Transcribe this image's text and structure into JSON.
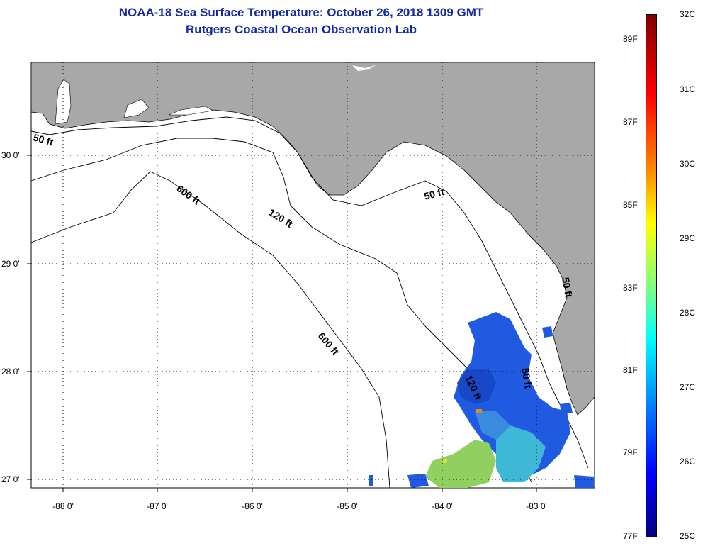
{
  "title": {
    "line1": "NOAA-18 Sea Surface Temperature:  October 26, 2018 1309 GMT",
    "line2": "Rutgers Coastal Ocean Observation Lab"
  },
  "axes": {
    "lat_labels": [
      "30 0'",
      "29 0'",
      "28 0'",
      "27 0'"
    ],
    "lon_labels": [
      "-88 0'",
      "-87 0'",
      "-86 0'",
      "-85 0'",
      "-84 0'",
      "-83 0'"
    ]
  },
  "contours": {
    "labels": [
      "50 ft",
      "600 ft",
      "120 ft",
      "50 ft",
      "600 ft",
      "120 ft",
      "50 ft",
      "50 ft"
    ]
  },
  "colorbar": {
    "celsius": [
      "32C",
      "31C",
      "30C",
      "29C",
      "28C",
      "27C",
      "26C",
      "25C"
    ],
    "fahrenheit": [
      "89F",
      "87F",
      "85F",
      "83F",
      "81F",
      "79F",
      "77F"
    ]
  },
  "colors": {
    "land": "#a8a8a8",
    "ocean": "#ffffff",
    "title": "#1428a8",
    "sst_blue": "#1f5ae0",
    "sst_cyan": "#3fb8d8",
    "sst_green": "#8fd060"
  },
  "icons": {
    "map": "sst-map"
  }
}
